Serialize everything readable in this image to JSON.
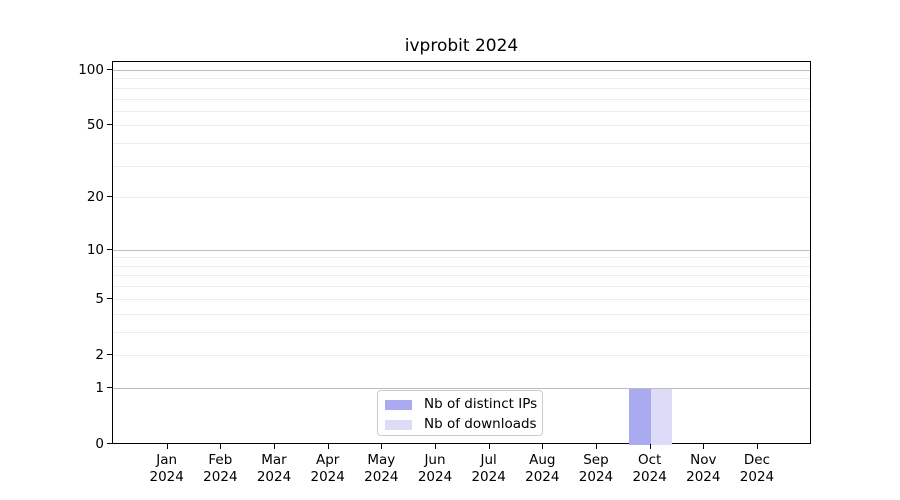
{
  "title": "ivprobit 2024",
  "chart_data": {
    "type": "bar",
    "title": "ivprobit 2024",
    "categories": [
      {
        "month": "Jan",
        "year": "2024"
      },
      {
        "month": "Feb",
        "year": "2024"
      },
      {
        "month": "Mar",
        "year": "2024"
      },
      {
        "month": "Apr",
        "year": "2024"
      },
      {
        "month": "May",
        "year": "2024"
      },
      {
        "month": "Jun",
        "year": "2024"
      },
      {
        "month": "Jul",
        "year": "2024"
      },
      {
        "month": "Aug",
        "year": "2024"
      },
      {
        "month": "Sep",
        "year": "2024"
      },
      {
        "month": "Oct",
        "year": "2024"
      },
      {
        "month": "Nov",
        "year": "2024"
      },
      {
        "month": "Dec",
        "year": "2024"
      }
    ],
    "series": [
      {
        "name": "Nb of distinct IPs",
        "color": "#aaaaf0",
        "values": [
          0,
          0,
          0,
          0,
          0,
          0,
          0,
          0,
          0,
          1,
          0,
          0
        ]
      },
      {
        "name": "Nb of downloads",
        "color": "#dcdcf8",
        "values": [
          0,
          0,
          0,
          0,
          0,
          0,
          0,
          0,
          0,
          1,
          0,
          0
        ]
      }
    ],
    "xlabel": "",
    "ylabel": "",
    "y_axis": {
      "scale": "log10(1+y)",
      "labeled_ticks": [
        0,
        1,
        2,
        5,
        10,
        20,
        50,
        100
      ],
      "major_gridlines": [
        1,
        10,
        100
      ],
      "minor_gridlines": [
        2,
        3,
        4,
        5,
        6,
        7,
        8,
        9,
        20,
        30,
        40,
        50,
        60,
        70,
        80,
        90
      ],
      "range": [
        0,
        112
      ]
    },
    "grid": true,
    "legend_position": "inside bottom-center"
  },
  "colors": {
    "background": "#ffffff",
    "spine": "#000000",
    "grid_major": "#bdbdbd",
    "grid_minor": "#ececec",
    "legend_border": "#cccccc",
    "bar_distinct_ips": "#aaaaf0",
    "bar_downloads": "#dcdcf8"
  }
}
